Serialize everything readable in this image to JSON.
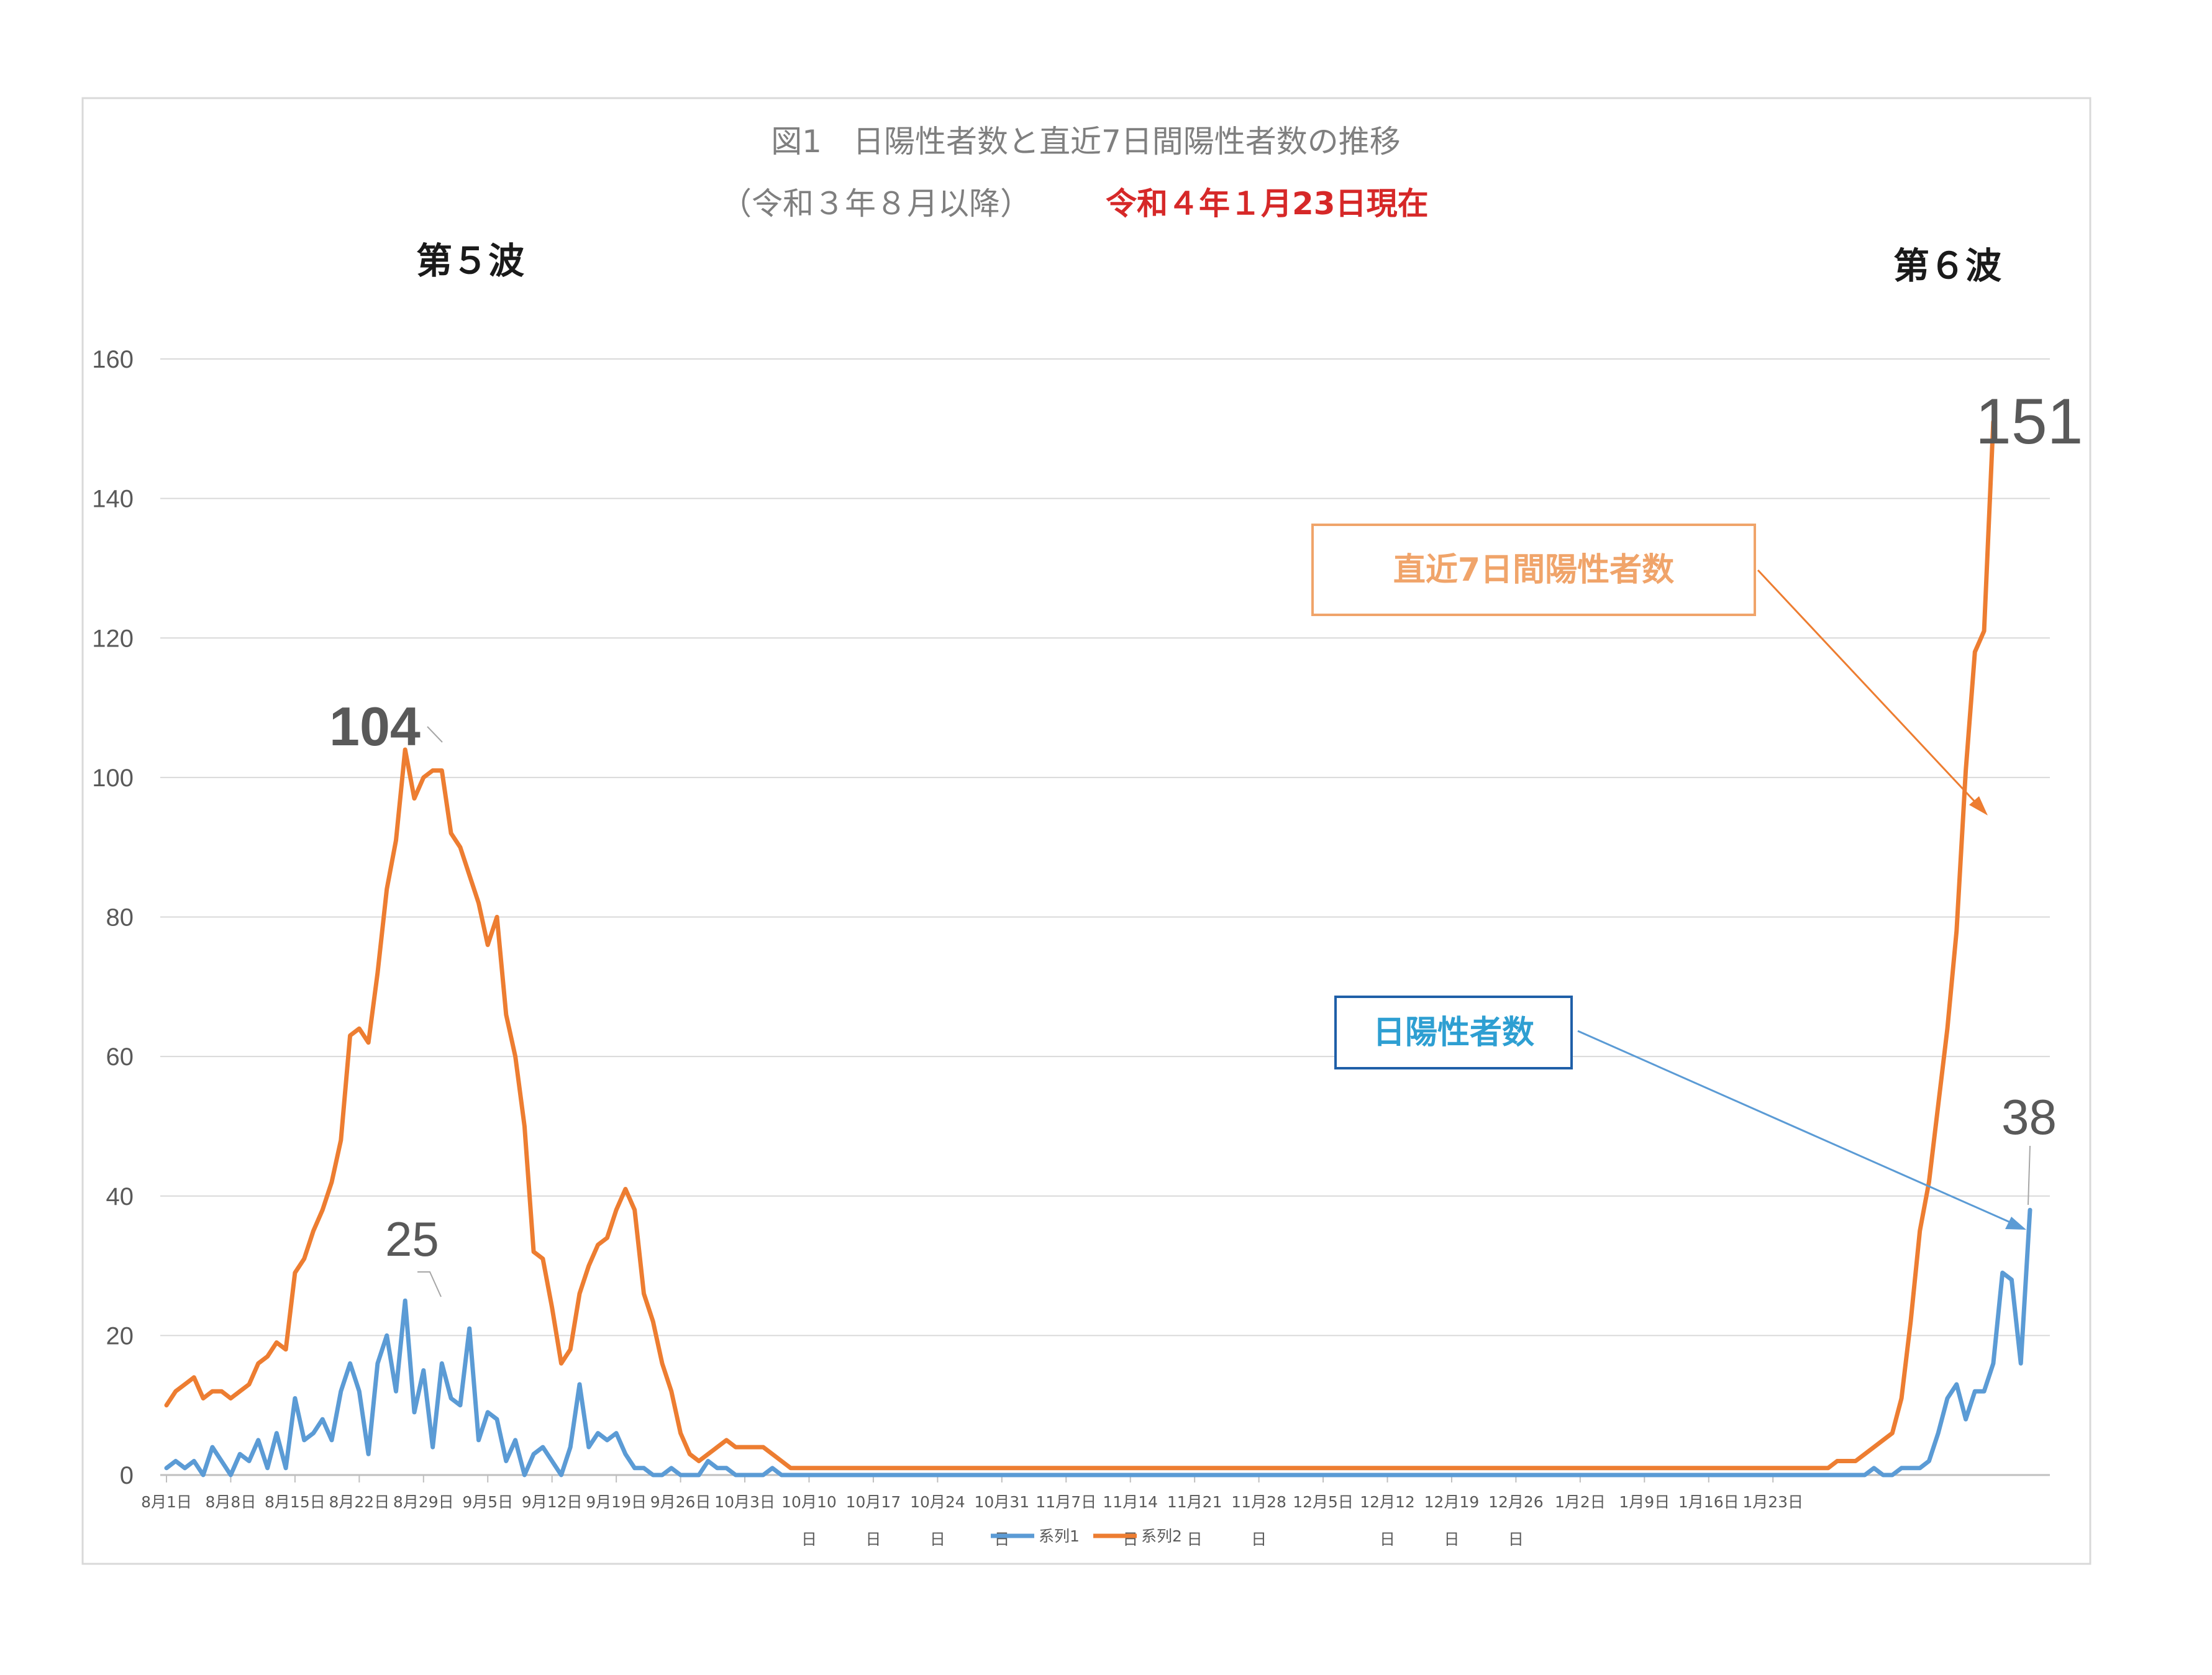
{
  "title": {
    "line1": "図1　日陽性者数と直近7日間陽性者数の推移",
    "line2": "（令和３年８月以降）",
    "line2_red": "令和４年１月23日現在"
  },
  "waves": {
    "left": "第５波",
    "right": "第６波"
  },
  "callouts": {
    "orange_box": "直近7日間陽性者数",
    "blue_box": "日陽性者数"
  },
  "annotations": {
    "peak_orange_5": "104",
    "peak_blue_5": "25",
    "last_orange": "151",
    "last_blue": "38"
  },
  "colors": {
    "series1": "#5b9bd5",
    "series2": "#ed7d31",
    "grid": "#d9d9d9",
    "title_red": "#d62828"
  },
  "chart_data": {
    "type": "line",
    "x_start": "2021-08-01",
    "ylim": [
      0,
      160
    ],
    "yticks": [
      0,
      20,
      40,
      60,
      80,
      100,
      120,
      140,
      160
    ],
    "grid": true,
    "legend_position": "bottom",
    "xtick_labels": [
      {
        "line1": "8月1日",
        "line2": ""
      },
      {
        "line1": "8月8日",
        "line2": ""
      },
      {
        "line1": "8月15日",
        "line2": ""
      },
      {
        "line1": "8月22日",
        "line2": ""
      },
      {
        "line1": "8月29日",
        "line2": ""
      },
      {
        "line1": "9月5日",
        "line2": ""
      },
      {
        "line1": "9月12日",
        "line2": ""
      },
      {
        "line1": "9月19日",
        "line2": ""
      },
      {
        "line1": "9月26日",
        "line2": ""
      },
      {
        "line1": "10月3日",
        "line2": ""
      },
      {
        "line1": "10月10",
        "line2": "日"
      },
      {
        "line1": "10月17",
        "line2": "日"
      },
      {
        "line1": "10月24",
        "line2": "日"
      },
      {
        "line1": "10月31",
        "line2": "日"
      },
      {
        "line1": "11月7日",
        "line2": ""
      },
      {
        "line1": "11月14",
        "line2": "日"
      },
      {
        "line1": "11月21",
        "line2": "日"
      },
      {
        "line1": "11月28",
        "line2": "日"
      },
      {
        "line1": "12月5日",
        "line2": ""
      },
      {
        "line1": "12月12",
        "line2": "日"
      },
      {
        "line1": "12月19",
        "line2": "日"
      },
      {
        "line1": "12月26",
        "line2": "日"
      },
      {
        "line1": "1月2日",
        "line2": ""
      },
      {
        "line1": "1月9日",
        "line2": ""
      },
      {
        "line1": "1月16日",
        "line2": ""
      },
      {
        "line1": "1月23日",
        "line2": ""
      }
    ],
    "series": [
      {
        "name": "系列1",
        "color": "#5b9bd5",
        "values": [
          1,
          2,
          1,
          2,
          0,
          4,
          2,
          0,
          3,
          2,
          5,
          1,
          6,
          1,
          11,
          5,
          6,
          8,
          5,
          12,
          16,
          12,
          3,
          16,
          20,
          12,
          25,
          9,
          15,
          4,
          16,
          11,
          10,
          21,
          5,
          9,
          8,
          2,
          5,
          0,
          3,
          4,
          2,
          0,
          4,
          13,
          4,
          6,
          5,
          6,
          3,
          1,
          1,
          0,
          0,
          1,
          0,
          0,
          0,
          2,
          1,
          1,
          0,
          0,
          0,
          0,
          1,
          0,
          0,
          0,
          0,
          0,
          0,
          0,
          0,
          0,
          0,
          0,
          0,
          0,
          0,
          0,
          0,
          0,
          0,
          0,
          0,
          0,
          0,
          0,
          0,
          0,
          0,
          0,
          0,
          0,
          0,
          0,
          0,
          0,
          0,
          0,
          0,
          0,
          0,
          0,
          0,
          0,
          0,
          0,
          0,
          0,
          0,
          0,
          0,
          0,
          0,
          0,
          0,
          0,
          0,
          0,
          0,
          0,
          0,
          0,
          0,
          0,
          0,
          0,
          0,
          0,
          0,
          0,
          0,
          0,
          0,
          0,
          0,
          0,
          0,
          0,
          0,
          0,
          0,
          0,
          0,
          0,
          0,
          0,
          0,
          0,
          0,
          0,
          0,
          0,
          0,
          0,
          0,
          0,
          0,
          0,
          0,
          0,
          0,
          0,
          0,
          0,
          0,
          0,
          0,
          0,
          0,
          0,
          0,
          0,
          0,
          0,
          0,
          0,
          0,
          0,
          0,
          0,
          0,
          0,
          1,
          0,
          0,
          1,
          1,
          1,
          2,
          6,
          11,
          13,
          8,
          12,
          12,
          16,
          29,
          28,
          16,
          38
        ]
      },
      {
        "name": "系列2",
        "color": "#ed7d31",
        "values": [
          10,
          12,
          13,
          14,
          11,
          12,
          12,
          11,
          12,
          13,
          16,
          17,
          19,
          18,
          29,
          31,
          35,
          38,
          42,
          48,
          63,
          64,
          62,
          72,
          84,
          91,
          104,
          97,
          100,
          101,
          101,
          92,
          90,
          86,
          82,
          76,
          80,
          66,
          60,
          50,
          32,
          31,
          24,
          16,
          18,
          26,
          30,
          33,
          34,
          38,
          41,
          38,
          26,
          22,
          16,
          12,
          6,
          3,
          2,
          3,
          4,
          5,
          4,
          4,
          4,
          4,
          3,
          2,
          1,
          1,
          1,
          1,
          1,
          1,
          1,
          1,
          1,
          1,
          1,
          1,
          1,
          1,
          1,
          1,
          1,
          1,
          1,
          1,
          1,
          1,
          1,
          1,
          1,
          1,
          1,
          1,
          1,
          1,
          1,
          1,
          1,
          1,
          1,
          1,
          1,
          1,
          1,
          1,
          1,
          1,
          1,
          1,
          1,
          1,
          1,
          1,
          1,
          1,
          1,
          1,
          1,
          1,
          1,
          1,
          1,
          1,
          1,
          1,
          1,
          1,
          1,
          1,
          1,
          1,
          1,
          1,
          1,
          1,
          1,
          1,
          1,
          1,
          1,
          1,
          1,
          1,
          1,
          1,
          1,
          1,
          1,
          1,
          1,
          1,
          1,
          1,
          1,
          1,
          1,
          1,
          1,
          1,
          1,
          1,
          1,
          1,
          1,
          1,
          1,
          1,
          1,
          1,
          1,
          1,
          1,
          1,
          1,
          1,
          1,
          1,
          1,
          1,
          2,
          2,
          2,
          3,
          4,
          5,
          6,
          11,
          22,
          35,
          42,
          53,
          64,
          78,
          101,
          118,
          121,
          151
        ]
      }
    ]
  }
}
